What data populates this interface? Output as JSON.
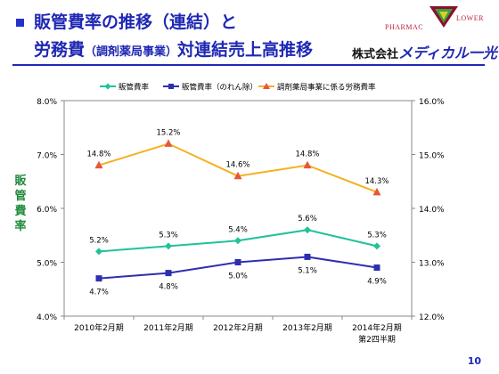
{
  "header": {
    "title_line1": "販管費率の推移（連結）と",
    "title_line2_a": "労務費",
    "title_line2_b": "（調剤薬局事業）",
    "title_line2_c": "対連結売上高推移",
    "company_prefix": "株式会社",
    "company_brand": "メディカル一光",
    "logo_left": "PHARMAC",
    "logo_right": "LOWER"
  },
  "y_axis_label": "販管費率",
  "page_number": "10",
  "colors": {
    "series_teal": "#20c29a",
    "series_navy": "#2e2eb0",
    "series_orange": "#f5b020",
    "marker_orange": "#e8563a",
    "title_blue": "#1f28b4"
  },
  "chart_data": {
    "type": "line",
    "categories": [
      "2010年2月期",
      "2011年2月期",
      "2012年2月期",
      "2013年2月期",
      "2014年2月期\n第2四半期"
    ],
    "series": [
      {
        "name": "販管費率",
        "axis": "left",
        "values": [
          5.2,
          5.3,
          5.4,
          5.6,
          5.3
        ],
        "labels": [
          "5.2%",
          "5.3%",
          "5.4%",
          "5.6%",
          "5.3%"
        ],
        "marker": "diamond"
      },
      {
        "name": "販管費率（のれん除）",
        "axis": "left",
        "values": [
          4.7,
          4.8,
          5.0,
          5.1,
          4.9
        ],
        "labels": [
          "4.7%",
          "4.8%",
          "5.0%",
          "5.1%",
          "4.9%"
        ],
        "marker": "square"
      },
      {
        "name": "調剤薬局事業に係る労務費率",
        "axis": "right",
        "values": [
          14.8,
          15.2,
          14.6,
          14.8,
          14.3
        ],
        "labels": [
          "14.8%",
          "15.2%",
          "14.6%",
          "14.8%",
          "14.3%"
        ],
        "marker": "triangle"
      }
    ],
    "y_left": {
      "min": 4.0,
      "max": 8.0,
      "ticks": [
        "4.0%",
        "5.0%",
        "6.0%",
        "7.0%",
        "8.0%"
      ]
    },
    "y_right": {
      "min": 12.0,
      "max": 16.0,
      "ticks": [
        "12.0%",
        "13.0%",
        "14.0%",
        "15.0%",
        "16.0%"
      ]
    },
    "legend_position": "top",
    "grid": false
  }
}
